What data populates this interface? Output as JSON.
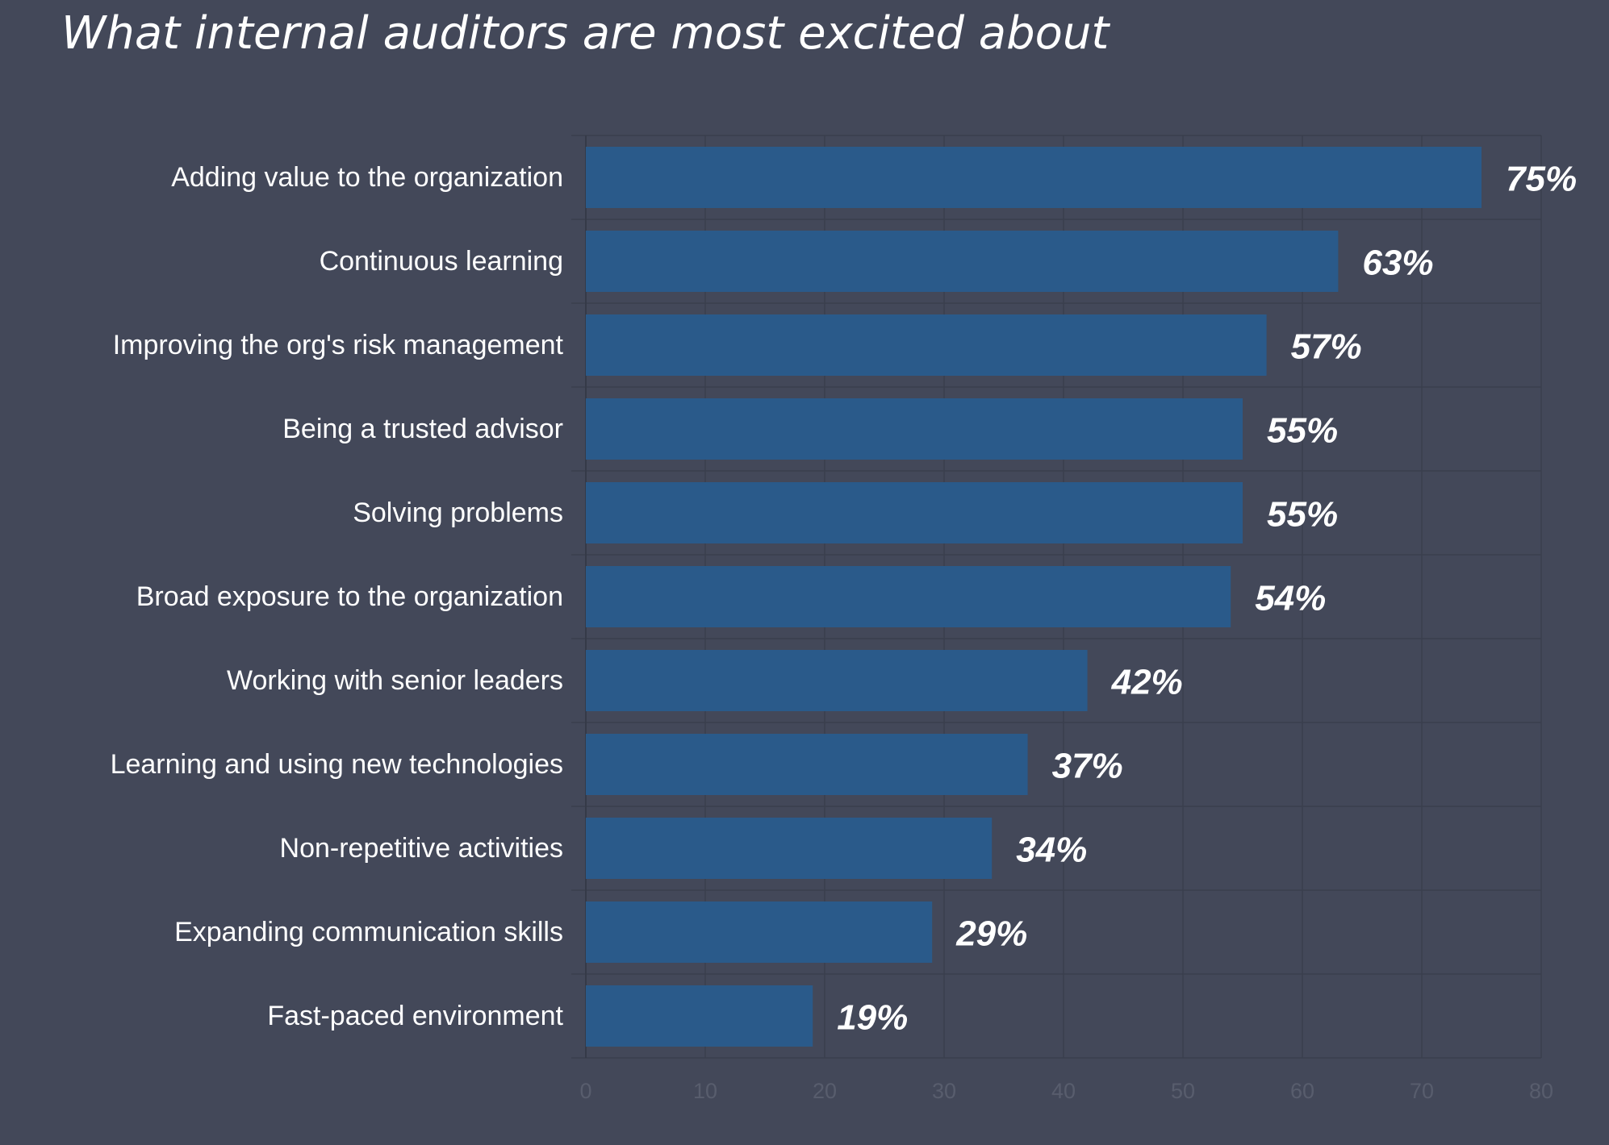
{
  "chart_data": {
    "type": "bar",
    "orientation": "horizontal",
    "title": "What internal auditors are most excited about",
    "categories": [
      "Adding value to the organization",
      "Continuous learning",
      "Improving the org's risk management",
      "Being a trusted advisor",
      "Solving problems",
      "Broad exposure to the organization",
      "Working with senior leaders",
      "Learning and using new technologies",
      "Non-repetitive activities",
      "Expanding communication skills",
      "Fast-paced environment"
    ],
    "values": [
      75,
      63,
      57,
      55,
      55,
      54,
      42,
      37,
      34,
      29,
      19
    ],
    "value_labels": [
      "75%",
      "63%",
      "57%",
      "55%",
      "55%",
      "54%",
      "42%",
      "37%",
      "34%",
      "29%",
      "19%"
    ],
    "xlabel": "",
    "ylabel": "",
    "xlim": [
      0,
      80
    ],
    "xticks": [
      "0",
      "10",
      "20",
      "30",
      "40",
      "50",
      "60",
      "70",
      "80"
    ],
    "grid": true,
    "legend": "none",
    "colors": {
      "background": "#434859",
      "bar": "#2a5a8a",
      "grid": "#3a3f4e",
      "text": "#ffffff",
      "tick_text": "#585d6d"
    }
  }
}
